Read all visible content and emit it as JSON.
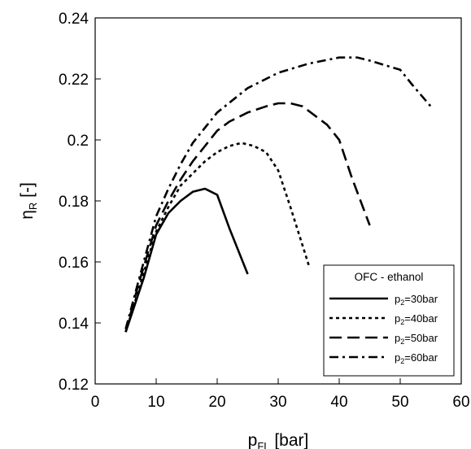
{
  "chart_data": {
    "type": "line",
    "title": "",
    "xlabel": {
      "main": "p",
      "sub": "FL",
      "unit": " [bar]"
    },
    "ylabel": {
      "main": "η",
      "sub": "R",
      "unit": " [-]"
    },
    "xlim": [
      0,
      60
    ],
    "ylim": [
      0.12,
      0.24
    ],
    "xticks": [
      0,
      10,
      20,
      30,
      40,
      50,
      60
    ],
    "xtick_labels": [
      "0",
      "10",
      "20",
      "30",
      "40",
      "50",
      "60"
    ],
    "yticks": [
      0.12,
      0.14,
      0.16,
      0.18,
      0.2,
      0.22,
      0.24
    ],
    "ytick_labels": [
      "0.12",
      "0.14",
      "0.16",
      "0.18",
      "0.2",
      "0.22",
      "0.24"
    ],
    "grid": false,
    "legend": {
      "title": "OFC - ethanol",
      "placement": "bottom-right"
    },
    "series": [
      {
        "name": "p2=30bar",
        "label_main": "p",
        "label_sub": "2",
        "label_rest": "=30bar",
        "style": "solid",
        "x": [
          5,
          6,
          8,
          10,
          12,
          14,
          16,
          18,
          20,
          22,
          25
        ],
        "y": [
          0.137,
          0.143,
          0.155,
          0.169,
          0.176,
          0.18,
          0.183,
          0.184,
          0.182,
          0.171,
          0.156
        ]
      },
      {
        "name": "p2=40bar",
        "label_main": "p",
        "label_sub": "2",
        "label_rest": "=40bar",
        "style": "dashed",
        "x": [
          5,
          7,
          10,
          12,
          14,
          16,
          18,
          20,
          22,
          24,
          26,
          28,
          30,
          32,
          35
        ],
        "y": [
          0.137,
          0.15,
          0.17,
          0.178,
          0.185,
          0.189,
          0.193,
          0.196,
          0.198,
          0.199,
          0.198,
          0.196,
          0.19,
          0.178,
          0.159
        ]
      },
      {
        "name": "p2=50bar",
        "label_main": "p",
        "label_sub": "2",
        "label_rest": "=50bar",
        "style": "longdash",
        "x": [
          5,
          7,
          10,
          12,
          14,
          16,
          18,
          20,
          22,
          25,
          28,
          30,
          32,
          34,
          38,
          40,
          42,
          45
        ],
        "y": [
          0.137,
          0.152,
          0.172,
          0.18,
          0.187,
          0.193,
          0.198,
          0.203,
          0.206,
          0.209,
          0.211,
          0.212,
          0.212,
          0.211,
          0.205,
          0.2,
          0.188,
          0.172
        ]
      },
      {
        "name": "p2=60bar",
        "label_main": "p",
        "label_sub": "2",
        "label_rest": "=60bar",
        "style": "dashdot",
        "x": [
          5,
          7,
          10,
          12,
          14,
          16,
          18,
          20,
          25,
          30,
          35,
          40,
          43,
          45,
          50,
          52,
          55
        ],
        "y": [
          0.138,
          0.153,
          0.175,
          0.184,
          0.192,
          0.199,
          0.204,
          0.209,
          0.217,
          0.222,
          0.225,
          0.227,
          0.227,
          0.226,
          0.223,
          0.218,
          0.211
        ]
      }
    ]
  }
}
